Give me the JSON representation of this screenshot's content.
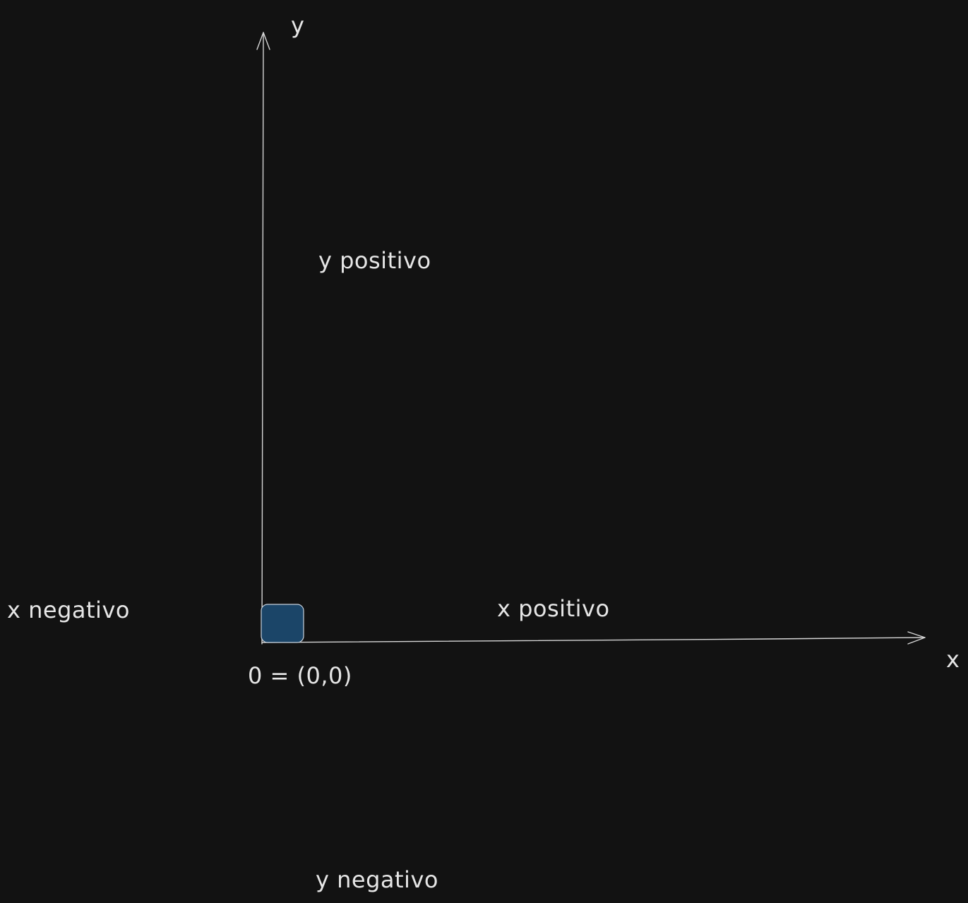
{
  "colors": {
    "background": "#121212",
    "stroke": "#d6d6d6",
    "text": "#e6e6e6",
    "origin_box_fill": "#1b4568",
    "origin_box_stroke": "#c9d3dd"
  },
  "labels": {
    "y_axis": "y",
    "x_axis": "x",
    "y_positive": "y positivo",
    "y_negative": "y negativo",
    "x_positive": "x positivo",
    "x_negative": "x negativo",
    "origin": "0 = (0,0)"
  }
}
